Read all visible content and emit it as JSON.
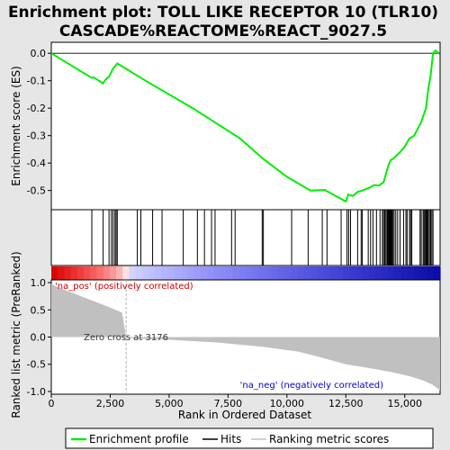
{
  "chart_data": {
    "type": "line",
    "title_line1": "Enrichment plot: TOLL LIKE RECEPTOR 10 (TLR10)",
    "title_line2": "CASCADE%REACTOME%REACT_9027.5",
    "top_ylabel": "Enrichment score (ES)",
    "bottom_ylabel": "Ranked list metric (PreRanked)",
    "xlabel": "Rank in Ordered Dataset",
    "xlim": [
      0,
      16500
    ],
    "top_ylim": [
      -0.57,
      0.04
    ],
    "bottom_ylim": [
      -1.05,
      1.05
    ],
    "x_ticks": [
      0,
      2500,
      5000,
      7500,
      10000,
      12500,
      15000
    ],
    "x_tick_labels": [
      "0",
      "2,500",
      "5,000",
      "7,500",
      "10,000",
      "12,500",
      "15,000"
    ],
    "top_y_ticks": [
      0.0,
      -0.1,
      -0.2,
      -0.3,
      -0.4,
      -0.5
    ],
    "top_y_tick_labels": [
      "0.0",
      "-0.1",
      "-0.2",
      "-0.3",
      "-0.4",
      "-0.5"
    ],
    "bottom_y_ticks": [
      1.0,
      0.5,
      0.0,
      -0.5,
      -1.0
    ],
    "bottom_y_tick_labels": [
      "1.0",
      "0.5",
      "0.0",
      "-0.5",
      "-1.0"
    ],
    "zero_cross_label": "Zero cross at 3176",
    "zero_cross": 3176,
    "pos_label": "'na_pos' (positively correlated)",
    "neg_label": "'na_neg' (negatively correlated)",
    "legend": [
      "Enrichment profile",
      "Hits",
      "Ranking metric scores"
    ],
    "colors": {
      "es_line": "#00ee00",
      "hit": "#000000",
      "metric": "#c0c0c0",
      "pos_label": "#cc0000",
      "neg_label": "#0000cc",
      "zero_cross_line": "#b0b0b0"
    },
    "es_profile": {
      "x": [
        0,
        1720,
        1800,
        2200,
        2280,
        2450,
        2500,
        2600,
        2700,
        2800,
        4000,
        6000,
        8000,
        9000,
        10000,
        11000,
        11600,
        12500,
        12600,
        12800,
        13000,
        13200,
        13500,
        13700,
        13900,
        14100,
        14200,
        14300,
        14400,
        14500,
        14800,
        15000,
        15200,
        15400,
        15700,
        15900,
        16000,
        16100,
        16200,
        16300,
        16450
      ],
      "y": [
        0.0,
        -0.09,
        -0.088,
        -0.11,
        -0.098,
        -0.085,
        -0.077,
        -0.058,
        -0.048,
        -0.037,
        -0.1,
        -0.2,
        -0.31,
        -0.385,
        -0.45,
        -0.5,
        -0.498,
        -0.54,
        -0.515,
        -0.52,
        -0.505,
        -0.5,
        -0.49,
        -0.48,
        -0.482,
        -0.47,
        -0.44,
        -0.41,
        -0.39,
        -0.385,
        -0.36,
        -0.34,
        -0.31,
        -0.3,
        -0.25,
        -0.2,
        -0.13,
        -0.08,
        0.0,
        0.01,
        0.0
      ]
    },
    "hits": [
      1720,
      2200,
      2450,
      2550,
      2620,
      2700,
      2750,
      2800,
      3650,
      3800,
      4300,
      4700,
      5600,
      6200,
      6500,
      6800,
      6950,
      7650,
      7800,
      8950,
      9000,
      10200,
      10900,
      11500,
      11700,
      12300,
      12550,
      12620,
      12700,
      13000,
      13150,
      13200,
      13450,
      13550,
      13650,
      13800,
      13950,
      14050,
      14100,
      14150,
      14200,
      14250,
      14280,
      14300,
      14330,
      14350,
      14380,
      14400,
      14430,
      14460,
      14500,
      14550,
      14620,
      14700,
      14800,
      14950,
      15050,
      15100,
      15200,
      15250,
      15300,
      15650,
      15700,
      15780,
      15820,
      15860,
      15900,
      15930,
      15960,
      16000,
      16050,
      16100,
      16150,
      16200
    ],
    "metric_curve": {
      "x": [
        0,
        200,
        600,
        1200,
        1800,
        2400,
        3000,
        3176,
        3500,
        5000,
        7000,
        9000,
        10500,
        11500,
        12500,
        13500,
        14500,
        15200,
        15800,
        16200,
        16500
      ],
      "y": [
        0.98,
        0.93,
        0.86,
        0.76,
        0.66,
        0.56,
        0.45,
        0.0,
        -0.03,
        -0.05,
        -0.1,
        -0.18,
        -0.27,
        -0.38,
        -0.5,
        -0.57,
        -0.65,
        -0.72,
        -0.8,
        -0.88,
        -0.98
      ]
    }
  }
}
